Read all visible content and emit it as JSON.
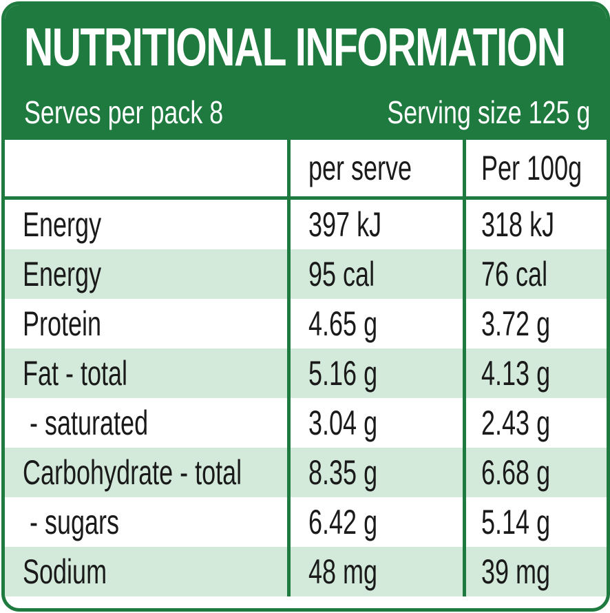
{
  "title": "NUTRITIONAL INFORMATION",
  "serves_per_pack": "Serves per pack 8",
  "serving_size": "Serving size 125 g",
  "columns": {
    "label": "",
    "per_serve": "per serve",
    "per_100g": "Per 100g"
  },
  "rows": [
    {
      "label": "Energy",
      "per_serve": "397 kJ",
      "per_100g": "318 kJ"
    },
    {
      "label": "Energy",
      "per_serve": "95 cal",
      "per_100g": "76 cal"
    },
    {
      "label": "Protein",
      "per_serve": "4.65 g",
      "per_100g": "3.72 g"
    },
    {
      "label": "Fat - total",
      "per_serve": "5.16 g",
      "per_100g": "4.13 g"
    },
    {
      "label": " - saturated",
      "per_serve": "3.04 g",
      "per_100g": "2.43 g"
    },
    {
      "label": "Carbohydrate - total",
      "per_serve": "8.35 g",
      "per_100g": "6.68 g"
    },
    {
      "label": " - sugars",
      "per_serve": "6.42 g",
      "per_100g": "5.14 g"
    },
    {
      "label": "Sodium",
      "per_serve": "48 mg",
      "per_100g": "39 mg"
    }
  ],
  "colors": {
    "brand_green": "#1f7a3f",
    "row_shade": "#d3eadb",
    "text": "#1a1a1a"
  }
}
